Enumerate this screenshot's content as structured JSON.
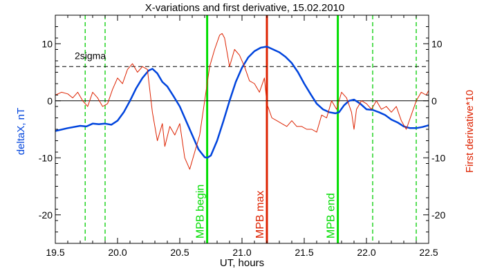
{
  "chart_data": {
    "type": "line",
    "title": "X-variations and first derivative, 15.02.2010",
    "xlabel": "UT, hours",
    "ylabel_left": "deltaX, nT",
    "ylabel_right": "First derivative*10",
    "xlim": [
      19.5,
      22.5
    ],
    "ylim": [
      -25,
      15
    ],
    "x_ticks": [
      19.5,
      20.0,
      20.5,
      21.0,
      21.5,
      22.0,
      22.5
    ],
    "x_tick_labels": [
      "19.5",
      "20.0",
      "20.5",
      "21.0",
      "21.5",
      "22.0",
      "22.5"
    ],
    "y_ticks": [
      -20,
      -10,
      0,
      10
    ],
    "y_tick_labels": [
      "-20",
      "-10",
      "0",
      "10"
    ],
    "hlines": [
      {
        "y": 0,
        "style": "solid",
        "color": "#000000"
      },
      {
        "y": 6,
        "style": "dashed",
        "color": "#000000",
        "label": "2sigma"
      }
    ],
    "vlines": [
      {
        "x": 19.74,
        "color": "#00cc00",
        "style": "dashed",
        "label": ""
      },
      {
        "x": 19.9,
        "color": "#00cc00",
        "style": "dashed",
        "label": ""
      },
      {
        "x": 20.72,
        "color": "#00dd00",
        "style": "solid",
        "label": "MPB begin"
      },
      {
        "x": 21.2,
        "color": "#dd2200",
        "style": "solid",
        "label": "MPB max"
      },
      {
        "x": 21.77,
        "color": "#00dd00",
        "style": "solid",
        "label": "MPB end"
      },
      {
        "x": 22.05,
        "color": "#00cc00",
        "style": "dashed",
        "label": ""
      },
      {
        "x": 22.4,
        "color": "#00cc00",
        "style": "dashed",
        "label": ""
      }
    ],
    "series": [
      {
        "color": "#0044dd",
        "x": [
          19.5,
          19.6,
          19.7,
          19.75,
          19.8,
          19.85,
          19.9,
          19.95,
          20.0,
          20.05,
          20.1,
          20.15,
          20.2,
          20.25,
          20.28,
          20.32,
          20.36,
          20.4,
          20.45,
          20.5,
          20.55,
          20.6,
          20.65,
          20.7,
          20.72,
          20.75,
          20.8,
          20.85,
          20.9,
          20.95,
          21.0,
          21.05,
          21.1,
          21.15,
          21.2,
          21.25,
          21.3,
          21.35,
          21.4,
          21.45,
          21.5,
          21.55,
          21.6,
          21.65,
          21.7,
          21.75,
          21.78,
          21.82,
          21.86,
          21.9,
          21.95,
          22.0,
          22.05,
          22.1,
          22.15,
          22.2,
          22.25,
          22.3,
          22.35,
          22.4,
          22.45,
          22.5
        ],
        "values": [
          -5.3,
          -4.8,
          -4.4,
          -4.5,
          -4.0,
          -4.1,
          -4.0,
          -4.2,
          -3.5,
          -2.0,
          0.0,
          2.2,
          4.0,
          5.3,
          5.6,
          4.8,
          3.3,
          2.5,
          0.8,
          -1.0,
          -3.5,
          -6.0,
          -8.5,
          -9.9,
          -10.0,
          -9.6,
          -7.0,
          -3.6,
          0.0,
          3.3,
          5.8,
          7.6,
          8.7,
          9.3,
          9.5,
          9.0,
          8.5,
          7.7,
          6.6,
          5.0,
          3.0,
          1.2,
          -0.5,
          -1.5,
          -2.0,
          -2.2,
          -2.0,
          -0.8,
          0.0,
          0.2,
          -0.5,
          -1.5,
          -1.6,
          -2.0,
          -2.5,
          -3.3,
          -3.8,
          -4.5,
          -4.8,
          -4.8,
          -4.6,
          -4.3
        ]
      },
      {
        "color": "#dd2200",
        "x": [
          19.5,
          19.55,
          19.6,
          19.64,
          19.68,
          19.72,
          19.76,
          19.8,
          19.84,
          19.88,
          19.92,
          19.96,
          20.0,
          20.04,
          20.08,
          20.12,
          20.16,
          20.2,
          20.24,
          20.28,
          20.32,
          20.36,
          20.38,
          20.42,
          20.46,
          20.5,
          20.54,
          20.58,
          20.62,
          20.66,
          20.7,
          20.74,
          20.78,
          20.82,
          20.84,
          20.86,
          20.9,
          20.94,
          20.98,
          21.02,
          21.06,
          21.1,
          21.14,
          21.18,
          21.2,
          21.24,
          21.28,
          21.32,
          21.36,
          21.4,
          21.44,
          21.48,
          21.52,
          21.56,
          21.6,
          21.64,
          21.68,
          21.72,
          21.76,
          21.8,
          21.84,
          21.88,
          21.9,
          21.92,
          21.96,
          22.0,
          22.04,
          22.08,
          22.12,
          22.16,
          22.2,
          22.24,
          22.28,
          22.32,
          22.36,
          22.4,
          22.44,
          22.48,
          22.5
        ],
        "values": [
          1.0,
          1.5,
          1.2,
          0.5,
          1.5,
          0.0,
          -1.0,
          1.5,
          0.5,
          -1.0,
          -0.5,
          2.0,
          4.0,
          3.0,
          5.5,
          6.5,
          5.0,
          6.0,
          5.5,
          -2.0,
          -7.0,
          -4.0,
          -8.0,
          -4.5,
          -6.0,
          -4.0,
          -10.0,
          -12.0,
          -9.0,
          -6.0,
          0.0,
          6.0,
          9.0,
          11.5,
          11.8,
          11.0,
          6.0,
          9.0,
          8.0,
          6.0,
          3.5,
          3.0,
          1.5,
          4.0,
          -0.5,
          -3.0,
          -3.5,
          -4.0,
          -4.5,
          -3.5,
          -4.5,
          -4.5,
          -5.0,
          -5.0,
          -5.5,
          -2.5,
          -3.0,
          0.0,
          -1.5,
          1.5,
          0.5,
          -2.0,
          -5.0,
          -1.5,
          0.0,
          -0.5,
          -1.5,
          0.0,
          -1.5,
          -1.0,
          -2.0,
          -1.0,
          -3.5,
          -5.0,
          -2.5,
          0.0,
          1.5,
          1.0,
          1.8
        ]
      }
    ]
  }
}
